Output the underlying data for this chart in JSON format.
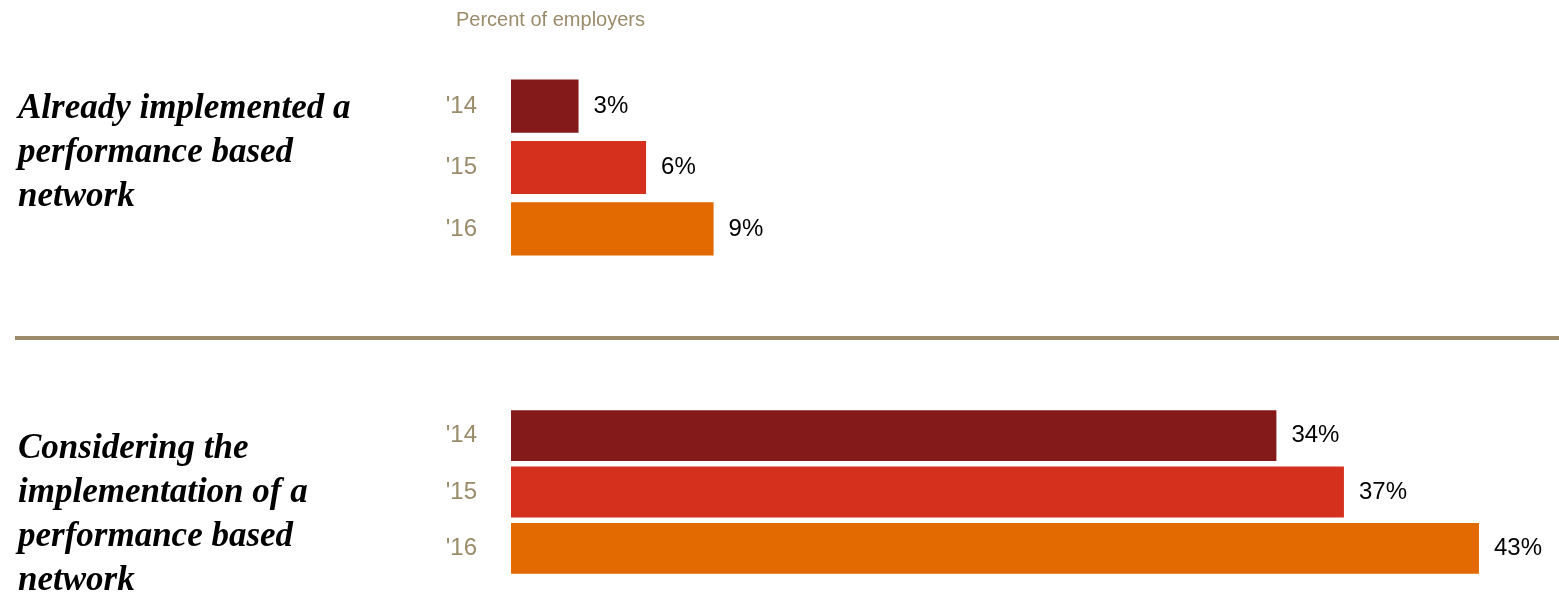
{
  "chart_data": [
    {
      "type": "bar",
      "orientation": "horizontal",
      "title": "Already implemented a performance based network",
      "subtitle": "Percent of employers",
      "categories": [
        "'14",
        "'15",
        "'16"
      ],
      "values": [
        3,
        6,
        9
      ],
      "colors": [
        "#841a1a",
        "#d5301e",
        "#e36a00"
      ],
      "value_labels": [
        "3%",
        "6%",
        "9%"
      ],
      "tick_labels": "y"
    },
    {
      "type": "bar",
      "orientation": "horizontal",
      "title": "Considering the implementation of a performance based network",
      "categories": [
        "'14",
        "'15",
        "'16"
      ],
      "values": [
        34,
        37,
        43
      ],
      "colors": [
        "#841a1a",
        "#d5301e",
        "#e36a00"
      ],
      "value_labels": [
        "34%",
        "37%",
        "43%"
      ],
      "tick_labels": "y"
    }
  ]
}
